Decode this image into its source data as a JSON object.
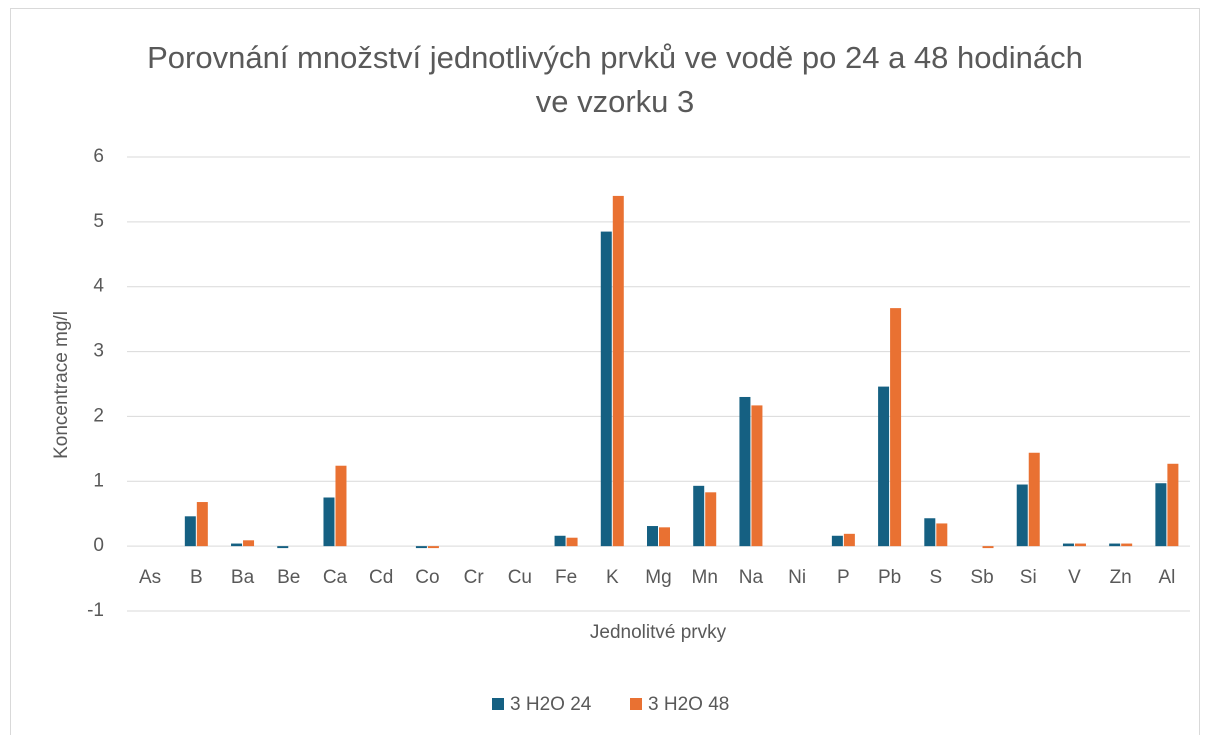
{
  "chart_data": {
    "type": "bar",
    "title": "Porovnání množství jednotlivých  prvků ve vodě po 24 a 48 hodinách ve vzorku 3",
    "x_label": "Jednolitvé prvky",
    "y_label": "Koncentrace mg/l",
    "categories": [
      "As",
      "B",
      "Ba",
      "Be",
      "Ca",
      "Cd",
      "Co",
      "Cr",
      "Cu",
      "Fe",
      "K",
      "Mg",
      "Mn",
      "Na",
      "Ni",
      "P",
      "Pb",
      "S",
      "Sb",
      "Si",
      "V",
      "Zn",
      "Al"
    ],
    "series": [
      {
        "name": "3 H2O 24",
        "color": "#156082",
        "values": [
          0,
          0.46,
          0.04,
          -0.03,
          0.75,
          0,
          -0.03,
          0,
          0,
          0.16,
          4.85,
          0.31,
          0.93,
          2.3,
          0,
          0.16,
          2.46,
          0.43,
          0,
          0.95,
          0.04,
          0.04,
          0.97
        ]
      },
      {
        "name": "3 H2O 48",
        "color": "#e97132",
        "values": [
          0,
          0.68,
          0.09,
          0,
          1.24,
          0,
          -0.03,
          0,
          0,
          0.13,
          5.4,
          0.29,
          0.83,
          2.17,
          0,
          0.19,
          3.67,
          0.35,
          -0.03,
          1.44,
          0.04,
          0.04,
          1.27
        ]
      }
    ],
    "ylim": [
      -1,
      6
    ],
    "yticks": [
      -1,
      0,
      1,
      2,
      3,
      4,
      5,
      6
    ],
    "grid": true,
    "legend": "bottom"
  }
}
